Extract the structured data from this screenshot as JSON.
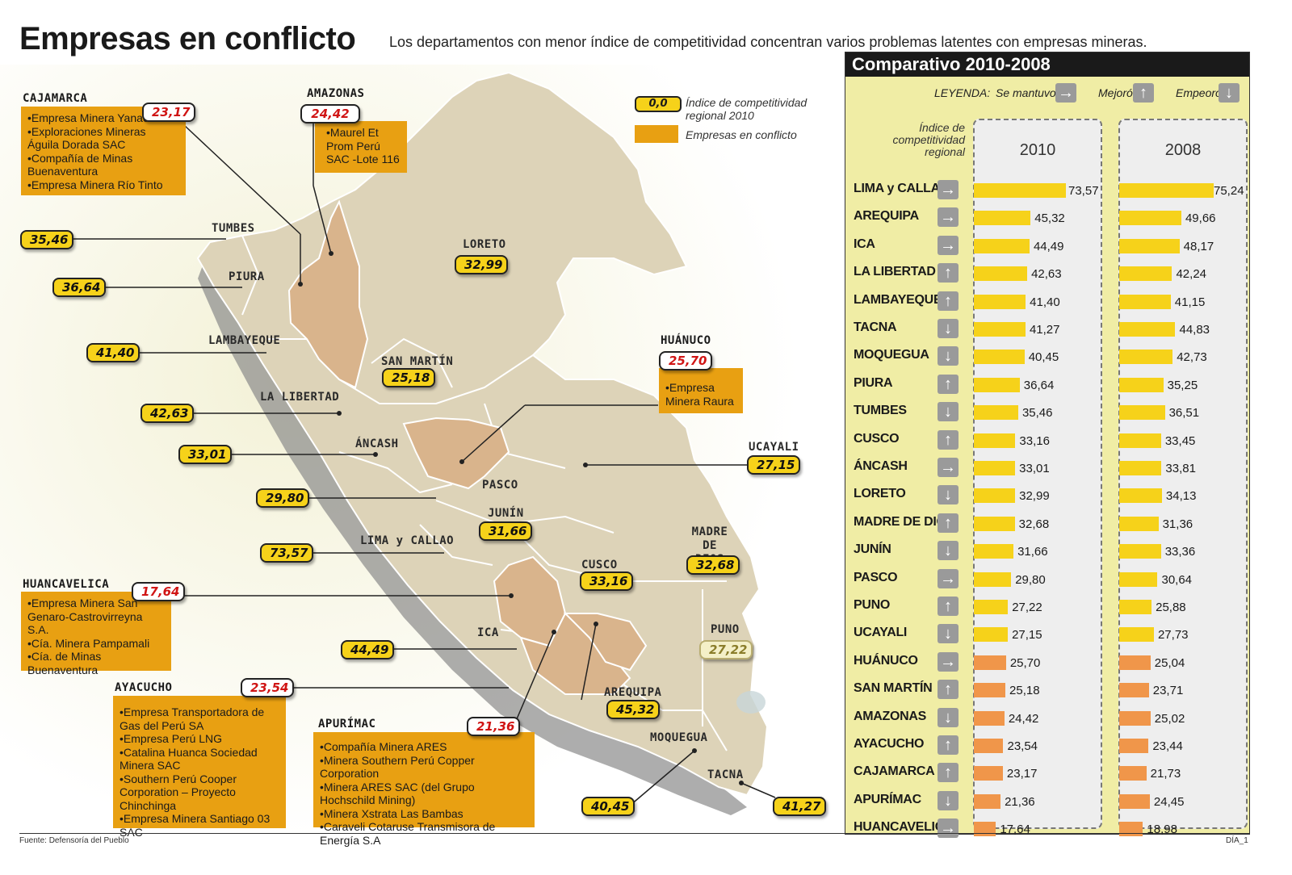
{
  "header": {
    "title": "Empresas en conflicto",
    "subtitle": "Los departamentos con menor índice de competitividad concentran varios problemas latentes con empresas mineras."
  },
  "legend": {
    "index_sample": "0,0",
    "index_text_1": "Índice de competitividad",
    "index_text_2": "regional 2010",
    "conflict_text": "Empresas en conflicto"
  },
  "colors": {
    "map_land": "#ddd3b8",
    "conflict_region": "#d9b48c",
    "value_fill": "#f6d21a",
    "conflict_box": "#e8a012",
    "bar_top": "#f6d21a",
    "bar_bottom": "#f0964a"
  },
  "map_labels": [
    {
      "name": "TUMBES",
      "value": "35,46"
    },
    {
      "name": "PIURA",
      "value": "36,64"
    },
    {
      "name": "LAMBAYEQUE",
      "value": "41,40"
    },
    {
      "name": "LA LIBERTAD",
      "value": "42,63"
    },
    {
      "name": "ÁNCASH",
      "value": "33,01"
    },
    {
      "name": "PASCO",
      "value": "29,80"
    },
    {
      "name": "LIMA y CALLAO",
      "value": "73,57"
    },
    {
      "name": "ICA",
      "value": "44,49"
    },
    {
      "name": "AREQUIPA",
      "value": "45,32"
    },
    {
      "name": "MOQUEGUA",
      "value": "40,45"
    },
    {
      "name": "TACNA",
      "value": "41,27"
    },
    {
      "name": "LORETO",
      "value": "32,99"
    },
    {
      "name": "SAN MARTÍN",
      "value": "25,18"
    },
    {
      "name": "UCAYALI",
      "value": "27,15"
    },
    {
      "name": "JUNÍN",
      "value": "31,66"
    },
    {
      "name": "MADRE DE DIOS",
      "value": "32,68"
    },
    {
      "name": "CUSCO",
      "value": "33,16"
    },
    {
      "name": "PUNO",
      "value": "27,22"
    }
  ],
  "conflicts": {
    "cajamarca": {
      "name": "CAJAMARCA",
      "value": "23,17",
      "items": [
        "•Empresa Minera Yanacocha",
        "•Exploraciones Mineras Águila Dorada SAC",
        "•Compañía de Minas Buenaventura",
        "•Empresa Minera Río Tinto"
      ]
    },
    "amazonas": {
      "name": "AMAZONAS",
      "value": "24,42",
      "items": [
        "•Maurel Et Prom Perú SAC -Lote 116"
      ]
    },
    "huanuco": {
      "name": "HUÁNUCO",
      "value": "25,70",
      "items": [
        "•Empresa Minera Raura"
      ]
    },
    "huancavelica": {
      "name": "HUANCAVELICA",
      "value": "17,64",
      "items": [
        "•Empresa Minera San Genaro-Castrovirreyna S.A.",
        "•Cía. Minera Pampamali",
        "•Cía. de Minas Buenaventura"
      ]
    },
    "ayacucho": {
      "name": "AYACUCHO",
      "value": "23,54",
      "items": [
        "•Empresa Transportadora de Gas del Perú SA",
        "•Empresa Perú LNG",
        "•Catalina Huanca Sociedad Minera SAC",
        "•Southern Perú Cooper Corporation – Proyecto Chinchinga",
        "•Empresa Minera Santiago 03 SAC"
      ]
    },
    "apurimac": {
      "name": "APURÍMAC",
      "value": "21,36",
      "items": [
        "•Compañía Minera ARES",
        "•Minera Southern Perú Copper Corporation",
        "•Minera ARES SAC (del Grupo Hochschild Mining)",
        "•Minera Xstrata Las Bambas",
        "•Caraveli Cotaruse Transmisora de Energía S.A"
      ]
    }
  },
  "panel": {
    "title": "Comparativo 2010-2008",
    "legend_label": "LEYENDA:",
    "legend_same": "Se mantuvo",
    "legend_better": "Mejoró",
    "legend_worse": "Empeoró",
    "index_label_1": "Índice de",
    "index_label_2": "competitividad",
    "index_label_3": "regional",
    "col_2010": "2010",
    "col_2008": "2008"
  },
  "chart_data": {
    "type": "bar",
    "title": "Comparativo 2010-2008",
    "categories": [
      "LIMA y CALLAO",
      "AREQUIPA",
      "ICA",
      "LA LIBERTAD",
      "LAMBAYEQUE",
      "TACNA",
      "MOQUEGUA",
      "PIURA",
      "TUMBES",
      "CUSCO",
      "ÁNCASH",
      "LORETO",
      "MADRE DE DIOS",
      "JUNÍN",
      "PASCO",
      "PUNO",
      "UCAYALI",
      "HUÁNUCO",
      "SAN MARTÍN",
      "AMAZONAS",
      "AYACUCHO",
      "CAJAMARCA",
      "APURÍMAC",
      "HUANCAVELICA"
    ],
    "trend": [
      "same",
      "same",
      "same",
      "up",
      "up",
      "down",
      "down",
      "up",
      "down",
      "up",
      "same",
      "down",
      "up",
      "down",
      "same",
      "up",
      "down",
      "same",
      "up",
      "down",
      "up",
      "up",
      "down",
      "same"
    ],
    "series": [
      {
        "name": "2010",
        "values": [
          73.57,
          45.32,
          44.49,
          42.63,
          41.4,
          41.27,
          40.45,
          36.64,
          35.46,
          33.16,
          33.01,
          32.99,
          32.68,
          31.66,
          29.8,
          27.22,
          27.15,
          25.7,
          25.18,
          24.42,
          23.54,
          23.17,
          21.36,
          17.64
        ]
      },
      {
        "name": "2008",
        "values": [
          75.24,
          49.66,
          48.17,
          42.24,
          41.15,
          44.83,
          42.73,
          35.25,
          36.51,
          33.45,
          33.81,
          34.13,
          31.36,
          33.36,
          30.64,
          25.88,
          27.73,
          25.04,
          23.71,
          25.02,
          23.44,
          21.73,
          24.45,
          18.98
        ]
      }
    ],
    "labels_2010": [
      "73,57",
      "45,32",
      "44,49",
      "42,63",
      "41,40",
      "41,27",
      "40,45",
      "36,64",
      "35,46",
      "33,16",
      "33,01",
      "32,99",
      "32,68",
      "31,66",
      "29,80",
      "27,22",
      "27,15",
      "25,70",
      "25,18",
      "24,42",
      "23,54",
      "23,17",
      "21,36",
      "17,64"
    ],
    "labels_2008": [
      "75,24",
      "49,66",
      "48,17",
      "42,24",
      "41,15",
      "44,83",
      "42,73",
      "35,25",
      "36,51",
      "33,45",
      "33,81",
      "34,13",
      "31,36",
      "33,36",
      "30,64",
      "25,88",
      "27,73",
      "25,04",
      "23,71",
      "25,02",
      "23,44",
      "21,73",
      "24,45",
      "18,98"
    ]
  },
  "footer": {
    "source": "Fuente: Defensoría del Pueblo",
    "page": "DÍA_1"
  }
}
